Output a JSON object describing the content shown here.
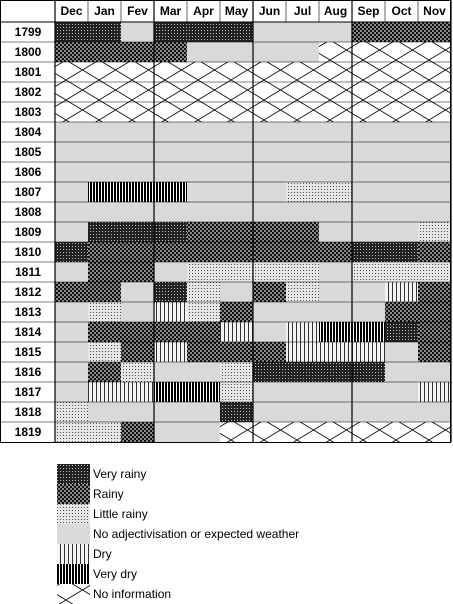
{
  "table": {
    "months": [
      "Dec",
      "Jan",
      "Fev",
      "Mar",
      "Apr",
      "May",
      "Jun",
      "Jul",
      "Aug",
      "Sep",
      "Oct",
      "Nov"
    ],
    "rows": [
      {
        "year": "1799",
        "cells": [
          0,
          0,
          3,
          0,
          0,
          0,
          3,
          3,
          3,
          1,
          1,
          1
        ]
      },
      {
        "year": "1800",
        "cells": [
          1,
          1,
          1,
          1,
          3,
          3,
          3,
          3,
          6,
          6,
          6,
          6
        ]
      },
      {
        "year": "1801",
        "cells": [
          6,
          6,
          6,
          6,
          6,
          6,
          6,
          6,
          6,
          6,
          6,
          6
        ]
      },
      {
        "year": "1802",
        "cells": [
          6,
          6,
          6,
          6,
          6,
          6,
          6,
          6,
          6,
          6,
          6,
          6
        ]
      },
      {
        "year": "1803",
        "cells": [
          6,
          6,
          6,
          6,
          6,
          6,
          6,
          6,
          6,
          6,
          6,
          6
        ]
      },
      {
        "year": "1804",
        "cells": [
          3,
          3,
          3,
          3,
          3,
          3,
          3,
          3,
          3,
          3,
          3,
          3
        ]
      },
      {
        "year": "1805",
        "cells": [
          3,
          3,
          3,
          3,
          3,
          3,
          3,
          3,
          3,
          3,
          3,
          3
        ]
      },
      {
        "year": "1806",
        "cells": [
          3,
          3,
          3,
          3,
          3,
          3,
          3,
          3,
          3,
          3,
          3,
          3
        ]
      },
      {
        "year": "1807",
        "cells": [
          3,
          5,
          5,
          5,
          3,
          3,
          3,
          2,
          2,
          3,
          3,
          3
        ]
      },
      {
        "year": "1808",
        "cells": [
          3,
          3,
          3,
          3,
          3,
          3,
          3,
          3,
          3,
          3,
          3,
          3
        ]
      },
      {
        "year": "1809",
        "cells": [
          3,
          0,
          0,
          0,
          1,
          1,
          1,
          1,
          3,
          3,
          3,
          2
        ]
      },
      {
        "year": "1810",
        "cells": [
          0,
          1,
          1,
          1,
          1,
          1,
          1,
          1,
          1,
          0,
          0,
          1
        ]
      },
      {
        "year": "1811",
        "cells": [
          3,
          1,
          1,
          3,
          2,
          2,
          2,
          2,
          3,
          2,
          2,
          2
        ]
      },
      {
        "year": "1812",
        "cells": [
          1,
          1,
          3,
          0,
          2,
          3,
          1,
          2,
          3,
          3,
          4,
          1
        ]
      },
      {
        "year": "1813",
        "cells": [
          3,
          2,
          3,
          4,
          2,
          1,
          3,
          3,
          3,
          3,
          1,
          1
        ]
      },
      {
        "year": "1814",
        "cells": [
          3,
          1,
          1,
          1,
          1,
          4,
          3,
          4,
          5,
          5,
          0,
          1
        ]
      },
      {
        "year": "1815",
        "cells": [
          3,
          2,
          1,
          4,
          1,
          1,
          1,
          4,
          4,
          4,
          3,
          1
        ]
      },
      {
        "year": "1816",
        "cells": [
          3,
          1,
          2,
          3,
          3,
          2,
          0,
          0,
          0,
          0,
          3,
          3
        ]
      },
      {
        "year": "1817",
        "cells": [
          3,
          4,
          4,
          5,
          5,
          2,
          3,
          3,
          3,
          3,
          3,
          4
        ]
      },
      {
        "year": "1818",
        "cells": [
          2,
          3,
          3,
          3,
          3,
          0,
          3,
          3,
          3,
          3,
          3,
          3
        ]
      },
      {
        "year": "1819",
        "cells": [
          2,
          2,
          1,
          3,
          3,
          6,
          6,
          6,
          6,
          6,
          6,
          6
        ]
      }
    ]
  },
  "legend": {
    "items": [
      {
        "label": "Very rainy"
      },
      {
        "label": "Rainy"
      },
      {
        "label": "Little rainy"
      },
      {
        "label": "No adjectivisation or expected weather"
      },
      {
        "label": "Dry"
      },
      {
        "label": "Very dry"
      },
      {
        "label": "No information"
      }
    ]
  }
}
